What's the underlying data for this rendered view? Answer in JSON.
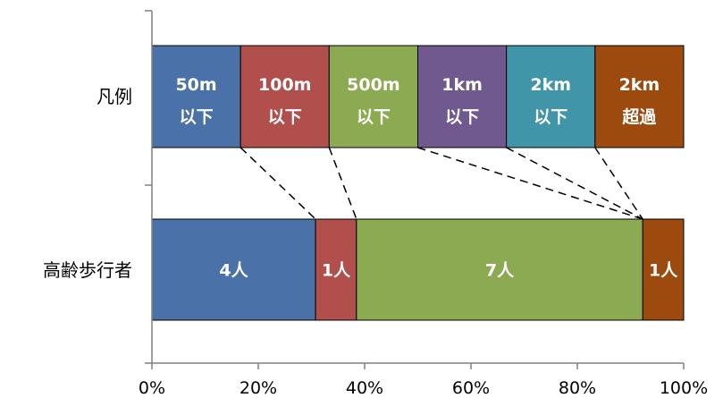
{
  "chart_data": {
    "type": "bar",
    "orientation": "horizontal",
    "stacked": "percent",
    "categories": [
      "凡例",
      "高齢歩行者"
    ],
    "legend_row": {
      "category": "凡例",
      "segments": [
        {
          "label_line1": "50m",
          "label_line2": "以下",
          "color": "#4a72a8",
          "value": 1
        },
        {
          "label_line1": "100m",
          "label_line2": "以下",
          "color": "#b14f4c",
          "value": 1
        },
        {
          "label_line1": "500m",
          "label_line2": "以下",
          "color": "#8baa52",
          "value": 1
        },
        {
          "label_line1": "1km",
          "label_line2": "以下",
          "color": "#70598f",
          "value": 1
        },
        {
          "label_line1": "2km",
          "label_line2": "以下",
          "color": "#4095a8",
          "value": 1
        },
        {
          "label_line1": "2km",
          "label_line2": "超過",
          "color": "#9c4a0e",
          "value": 1
        }
      ]
    },
    "data_row": {
      "category": "高齢歩行者",
      "segments": [
        {
          "label": "4人",
          "value": 4,
          "color": "#4a72a8"
        },
        {
          "label": "1人",
          "value": 1,
          "color": "#b14f4c"
        },
        {
          "label": "7人",
          "value": 7,
          "color": "#8baa52"
        },
        {
          "label": "",
          "value": 0,
          "color": "#70598f"
        },
        {
          "label": "",
          "value": 0,
          "color": "#4095a8"
        },
        {
          "label": "1人",
          "value": 1,
          "color": "#9c4a0e"
        }
      ]
    },
    "x_ticks": [
      "0%",
      "20%",
      "40%",
      "60%",
      "80%",
      "100%"
    ],
    "xlim": [
      0,
      100
    ],
    "grid": false,
    "connectors": "dashed"
  }
}
